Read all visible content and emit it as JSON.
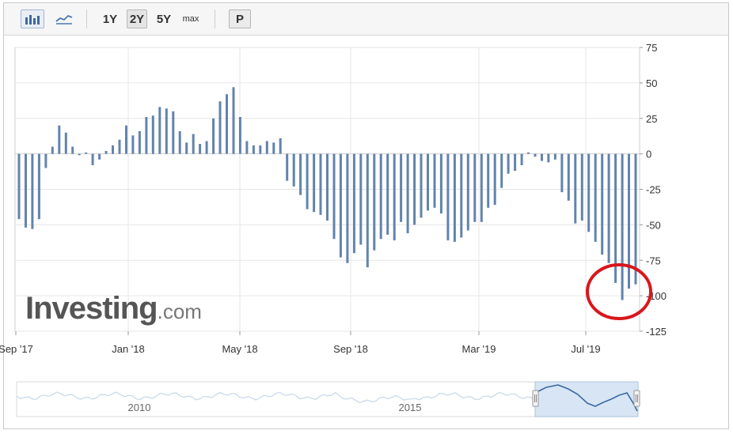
{
  "toolbar": {
    "bar_chart_icon": "bar-chart-icon",
    "line_chart_icon": "line-chart-icon",
    "range_1y": "1Y",
    "range_2y": "2Y",
    "range_5y": "5Y",
    "range_max": "max",
    "p_label": "P"
  },
  "watermark": {
    "brand": "Investing",
    "suffix": ".com"
  },
  "navigator": {
    "labels": [
      "2010",
      "2015"
    ]
  },
  "colors": {
    "bar": "#6283ad",
    "highlight_circle": "#d9161c",
    "grid": "#e6e6e6"
  },
  "chart_data": {
    "type": "bar",
    "ylim": [
      -125,
      75
    ],
    "yticks": [
      75,
      50,
      25,
      0,
      -25,
      -50,
      -75,
      -100,
      -125
    ],
    "ytick_labels": [
      "75",
      "50",
      "25",
      "0",
      "-25",
      "-50",
      "-75",
      "-100",
      "-125"
    ],
    "x_tick_labels": [
      "Sep '17",
      "Jan '18",
      "May '18",
      "Sep '18",
      "Mar '19",
      "Jul '19"
    ],
    "grid": true,
    "highlight": "circle around the last bars (about -100)",
    "values": [
      -46,
      -52,
      -53,
      -46,
      -10,
      5,
      20,
      15,
      5,
      -1,
      1,
      -8,
      -4,
      2,
      6,
      10,
      20,
      13,
      16,
      26,
      27,
      33,
      32,
      30,
      16,
      8,
      14,
      7,
      9,
      25,
      37,
      42,
      47,
      26,
      9,
      6,
      6,
      9,
      8,
      11,
      -19,
      -23,
      -29,
      -39,
      -41,
      -43,
      -47,
      -60,
      -73,
      -77,
      -70,
      -64,
      -80,
      -68,
      -60,
      -57,
      -61,
      -48,
      -56,
      -50,
      -45,
      -40,
      -38,
      -42,
      -61,
      -62,
      -59,
      -54,
      -48,
      -48,
      -38,
      -36,
      -24,
      -14,
      -12,
      -8,
      1,
      -2,
      -5,
      -6,
      -4,
      -27,
      -33,
      -49,
      -47,
      -55,
      -62,
      -71,
      -77,
      -91,
      -103,
      -95,
      -92
    ]
  }
}
